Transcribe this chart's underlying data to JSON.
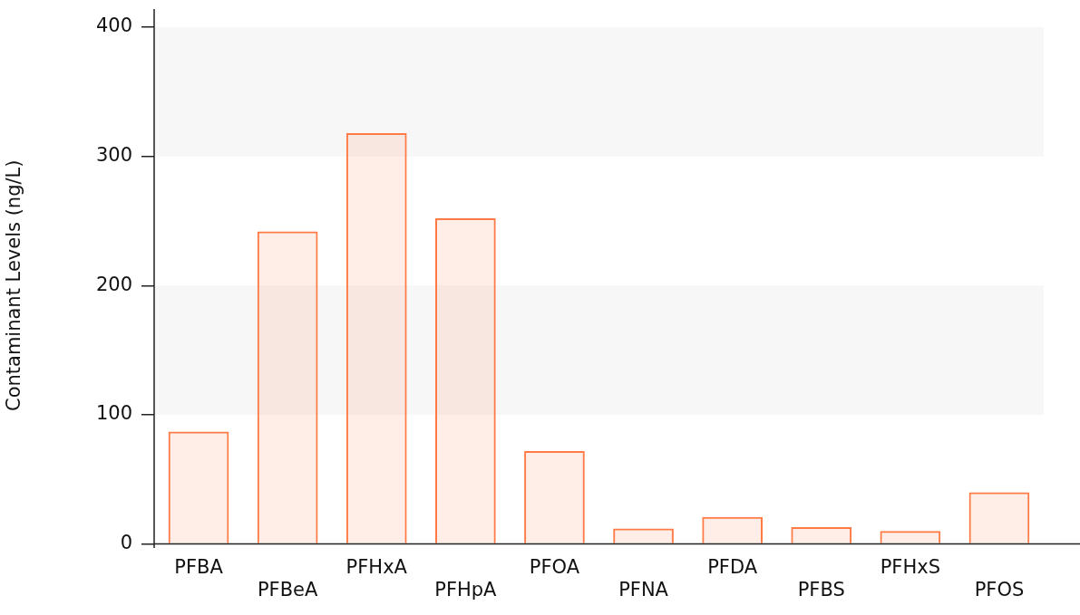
{
  "chart_data": {
    "type": "bar",
    "ylabel": "Contaminant Levels (ng/L)",
    "categories": [
      "PFBA",
      "PFBeA",
      "PFHxA",
      "PFHpA",
      "PFOA",
      "PFNA",
      "PFDA",
      "PFBS",
      "PFHxS",
      "PFOS"
    ],
    "values": [
      87,
      242,
      318,
      252,
      72,
      12,
      21,
      13,
      10,
      40
    ],
    "color": "#ff7a45",
    "ylim": [
      0,
      400
    ],
    "yticks": [
      0,
      100,
      200,
      300,
      400
    ],
    "legend": false
  }
}
